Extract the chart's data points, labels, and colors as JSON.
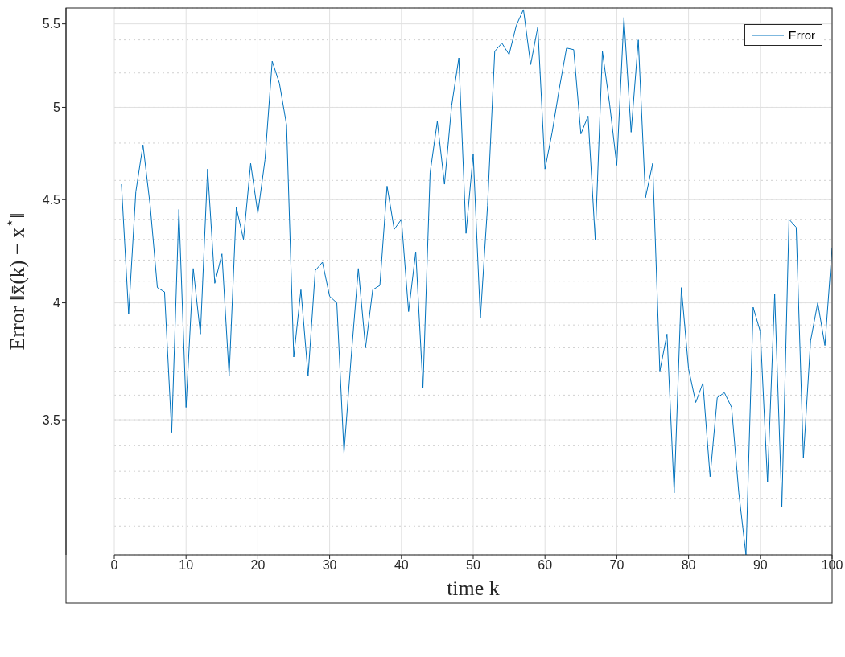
{
  "chart_data": {
    "type": "line",
    "xlabel": "time k",
    "ylabel": "Error ‖x̄(k) − x$^{⋆}$‖",
    "x": [
      1,
      2,
      3,
      4,
      5,
      6,
      7,
      8,
      9,
      10,
      11,
      12,
      13,
      14,
      15,
      16,
      17,
      18,
      19,
      20,
      21,
      22,
      23,
      24,
      25,
      26,
      27,
      28,
      29,
      30,
      31,
      32,
      33,
      34,
      35,
      36,
      37,
      38,
      39,
      40,
      41,
      42,
      43,
      44,
      45,
      46,
      47,
      48,
      49,
      50,
      51,
      52,
      53,
      54,
      55,
      56,
      57,
      58,
      59,
      60,
      61,
      62,
      63,
      64,
      65,
      66,
      67,
      68,
      69,
      70,
      71,
      72,
      73,
      74,
      75,
      76,
      77,
      78,
      79,
      80,
      81,
      82,
      83,
      84,
      85,
      86,
      87,
      88,
      89,
      90,
      91,
      92,
      93,
      94,
      95,
      96,
      97,
      98,
      99,
      100
    ],
    "series": [
      {
        "name": "Error",
        "color": "#0072bd",
        "values": [
          4.58,
          3.95,
          4.54,
          4.79,
          4.47,
          4.07,
          4.05,
          3.45,
          4.45,
          3.55,
          4.16,
          3.86,
          4.66,
          4.09,
          4.23,
          3.68,
          4.46,
          4.3,
          4.69,
          4.43,
          4.71,
          5.27,
          5.14,
          4.9,
          3.76,
          4.06,
          3.68,
          4.15,
          4.19,
          4.03,
          4.0,
          3.37,
          3.76,
          4.16,
          3.8,
          4.06,
          4.08,
          4.57,
          4.35,
          4.4,
          3.96,
          4.24,
          3.63,
          4.64,
          4.92,
          4.58,
          5.01,
          5.29,
          4.33,
          4.74,
          3.93,
          4.47,
          5.33,
          5.38,
          5.31,
          5.49,
          5.59,
          5.25,
          5.48,
          4.66,
          4.86,
          5.11,
          5.35,
          5.34,
          4.85,
          4.95,
          4.3,
          5.33,
          5.02,
          4.68,
          5.54,
          4.86,
          5.4,
          4.51,
          4.69,
          3.7,
          3.86,
          3.22,
          4.07,
          3.71,
          3.57,
          3.65,
          3.28,
          3.59,
          3.61,
          3.55,
          3.22,
          3.0,
          3.98,
          3.87,
          3.26,
          4.04,
          3.17,
          4.4,
          4.36,
          3.35,
          3.83,
          4.0,
          3.81,
          4.26
        ]
      }
    ],
    "xlim": [
      0,
      100
    ],
    "xticks": [
      0,
      10,
      20,
      30,
      40,
      50,
      60,
      70,
      80,
      90,
      100
    ],
    "ylim": [
      3,
      5.6
    ],
    "yticks": [
      3.5,
      4,
      4.5,
      5,
      5.5
    ],
    "log": true,
    "grid": true,
    "legend": "top right",
    "marker": "none",
    "line_style": "solid"
  }
}
